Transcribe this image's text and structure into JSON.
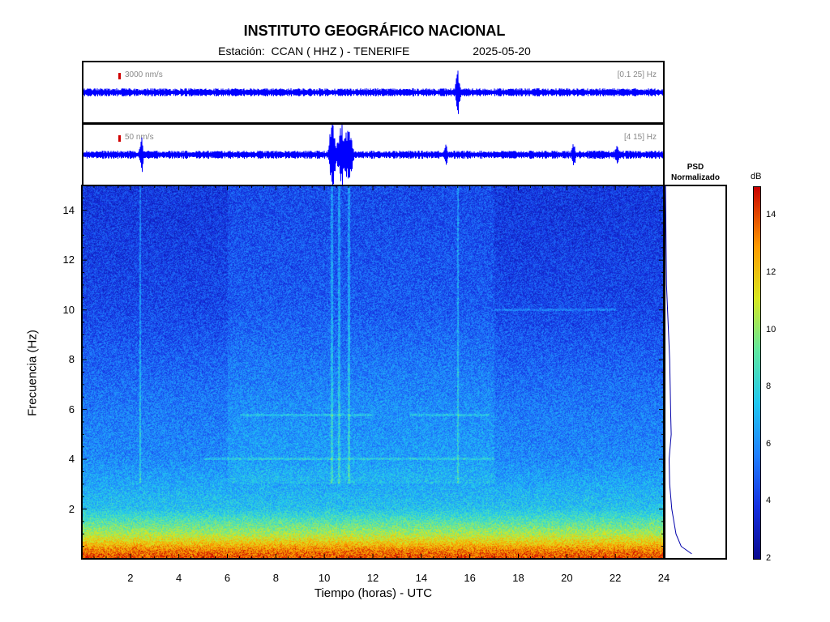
{
  "header": {
    "title": "INSTITUTO GEOGRÁFICO NACIONAL",
    "station_label": "Estación:",
    "station_value": "CCAN ( HHZ ) - TENERIFE",
    "date": "2025-05-20"
  },
  "trace_top": {
    "scale": "3000 nm/s",
    "band": "[0.1 25] Hz",
    "color": "#0000ff"
  },
  "trace_bottom": {
    "scale": "50 nm/s",
    "band": "[4 15] Hz",
    "color": "#0000ff"
  },
  "psd_panel": {
    "title_line1": "PSD",
    "title_line2": "Normalizado"
  },
  "colorbar": {
    "unit": "dB",
    "ticks": [
      "14",
      "12",
      "10",
      "8",
      "6",
      "4",
      "2"
    ]
  },
  "axes": {
    "xlabel": "Tiempo (horas) - UTC",
    "ylabel": "Frecuencia  (Hz)",
    "x_ticks": [
      "2",
      "4",
      "6",
      "8",
      "10",
      "12",
      "14",
      "16",
      "18",
      "20",
      "22",
      "24"
    ],
    "y_ticks": [
      "14",
      "12",
      "10",
      "8",
      "6",
      "4",
      "2"
    ]
  },
  "chart_data": {
    "type": "heatmap",
    "title": "INSTITUTO GEOGRÁFICO NACIONAL",
    "xlabel": "Tiempo (horas) - UTC",
    "ylabel": "Frecuencia  (Hz)",
    "xlim": [
      0,
      24
    ],
    "ylim": [
      0,
      15
    ],
    "colorbar_unit": "dB",
    "colorbar_range": [
      2,
      15
    ],
    "colormap": [
      "#0a0a90",
      "#1530e0",
      "#2080ff",
      "#20c8f0",
      "#60e8a0",
      "#d8e820",
      "#ff9a00",
      "#c80000"
    ],
    "background_level_db_by_freq": [
      {
        "freq": 0.3,
        "db": 13.5
      },
      {
        "freq": 1.0,
        "db": 10.5
      },
      {
        "freq": 2.0,
        "db": 7.5
      },
      {
        "freq": 4.0,
        "db": 6.0
      },
      {
        "freq": 6.0,
        "db": 5.6
      },
      {
        "freq": 8.0,
        "db": 5.0
      },
      {
        "freq": 10.0,
        "db": 4.4
      },
      {
        "freq": 14.0,
        "db": 4.0
      }
    ],
    "vertical_events_hours": [
      2.4,
      10.3,
      10.6,
      11.0,
      15.5
    ],
    "horizontal_tones": [
      {
        "freq": 4.0,
        "start": 5.0,
        "end": 17.0
      },
      {
        "freq": 5.75,
        "start": 6.5,
        "end": 12.0
      },
      {
        "freq": 5.75,
        "start": 13.5,
        "end": 16.8
      },
      {
        "freq": 10.0,
        "start": 17.0,
        "end": 22.0
      }
    ],
    "psd_normalized_profile": [
      {
        "freq": 0.2,
        "value": 0.5
      },
      {
        "freq": 0.5,
        "value": 0.3
      },
      {
        "freq": 1.0,
        "value": 0.2
      },
      {
        "freq": 2.0,
        "value": 0.12
      },
      {
        "freq": 3.0,
        "value": 0.08
      },
      {
        "freq": 4.0,
        "value": 0.07
      },
      {
        "freq": 5.0,
        "value": 0.11
      },
      {
        "freq": 5.75,
        "value": 0.1
      },
      {
        "freq": 7.0,
        "value": 0.09
      },
      {
        "freq": 8.0,
        "value": 0.08
      },
      {
        "freq": 9.0,
        "value": 0.06
      },
      {
        "freq": 10.0,
        "value": 0.04
      },
      {
        "freq": 11.0,
        "value": 0.02
      },
      {
        "freq": 15.0,
        "value": 0.0
      }
    ]
  }
}
